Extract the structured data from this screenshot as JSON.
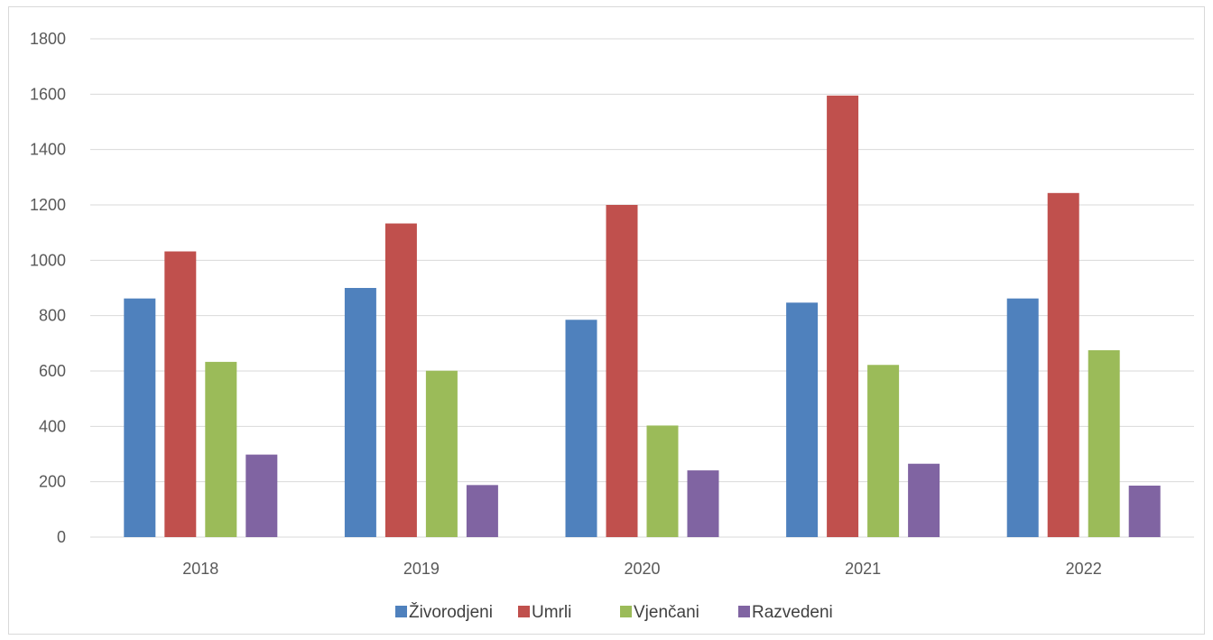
{
  "chart_data": {
    "type": "bar",
    "categories": [
      "2018",
      "2019",
      "2020",
      "2021",
      "2022"
    ],
    "series": [
      {
        "name": "Živorodjeni",
        "color": "#4f81bd",
        "values": [
          862,
          900,
          785,
          847,
          862
        ]
      },
      {
        "name": "Umrli",
        "color": "#c0504d",
        "values": [
          1032,
          1133,
          1200,
          1595,
          1243
        ]
      },
      {
        "name": "Vjenčani",
        "color": "#9bbb59",
        "values": [
          633,
          601,
          403,
          622,
          675
        ]
      },
      {
        "name": "Razvedeni",
        "color": "#8064a2",
        "values": [
          298,
          188,
          241,
          265,
          186
        ]
      }
    ],
    "ylim": [
      0,
      1800
    ],
    "yticks": [
      0,
      200,
      400,
      600,
      800,
      1000,
      1200,
      1400,
      1600,
      1800
    ],
    "grid": true,
    "legend_position": "bottom"
  }
}
